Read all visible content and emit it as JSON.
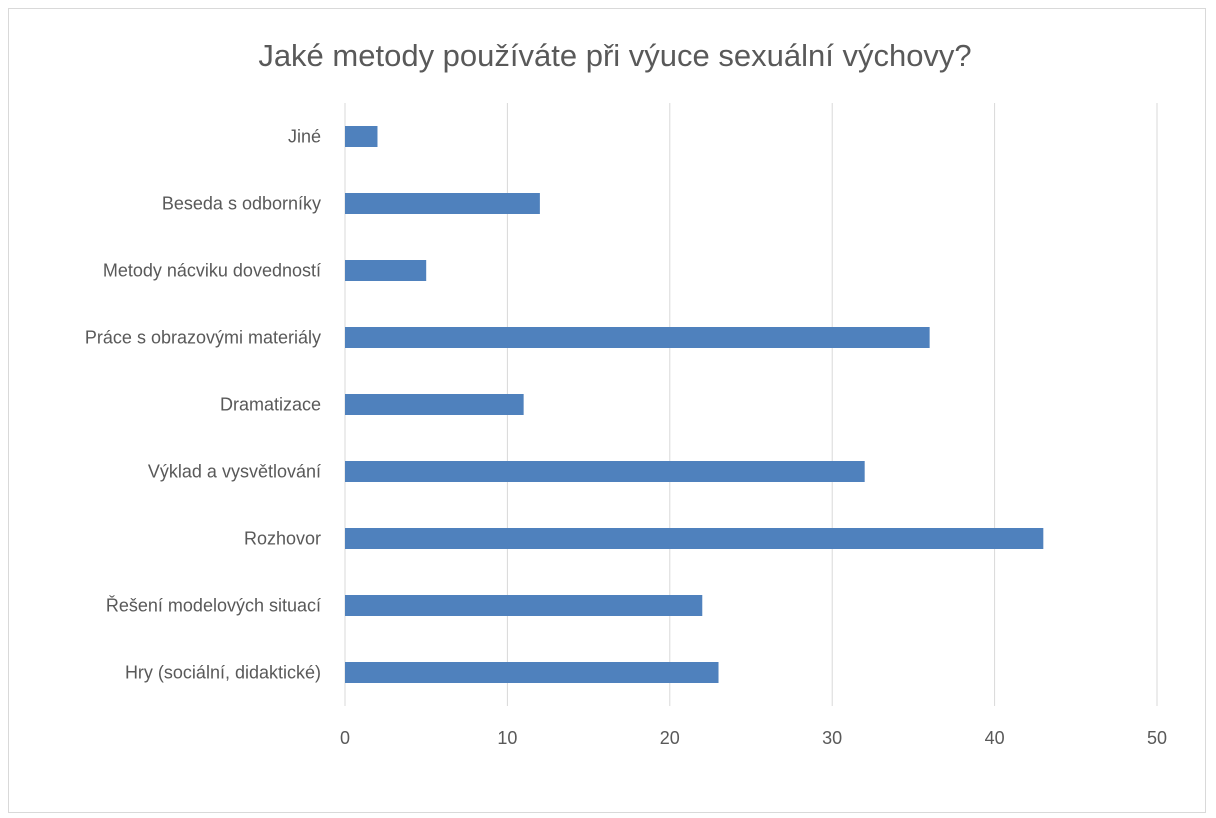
{
  "chart_data": {
    "type": "bar",
    "orientation": "horizontal",
    "title": "Jaké metody používáte při výuce sexuální výchovy?",
    "categories": [
      "Jiné",
      "Beseda s odborníky",
      "Metody nácviku dovedností",
      "Práce s obrazovými materiály",
      "Dramatizace",
      "Výklad a vysvětlování",
      "Rozhovor",
      "Řešení modelových situací",
      "Hry (sociální, didaktické)"
    ],
    "values": [
      2,
      12,
      5,
      36,
      11,
      32,
      43,
      22,
      23
    ],
    "xlim": [
      0,
      50
    ],
    "xticks": [
      "0",
      "10",
      "20",
      "30",
      "40",
      "50"
    ],
    "grid": true,
    "bar_color": "#4f81bd",
    "xlabel": "",
    "ylabel": ""
  }
}
